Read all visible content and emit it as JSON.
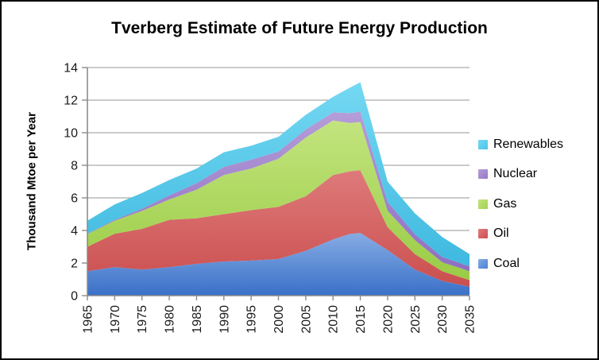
{
  "chart_data": {
    "type": "area",
    "stacked": true,
    "title": "Tverberg Estimate of Future Energy Production",
    "ylabel": "Thousand Mtoe per Year",
    "xlabel": "",
    "ylim": [
      0,
      14
    ],
    "y_ticks": [
      0,
      2,
      4,
      6,
      8,
      10,
      12,
      14
    ],
    "x_tick_labels": [
      "1965",
      "1970",
      "1975",
      "1980",
      "1985",
      "1990",
      "1995",
      "2000",
      "2005",
      "2010",
      "2015",
      "2020",
      "2025",
      "2030",
      "2035"
    ],
    "grid": true,
    "legend_position": "right",
    "legend_order": [
      "Renewables",
      "Nuclear",
      "Gas",
      "Oil",
      "Coal"
    ],
    "x": [
      1965,
      1970,
      1975,
      1980,
      1985,
      1990,
      1995,
      2000,
      2005,
      2010,
      2013,
      2015,
      2020,
      2025,
      2030,
      2035
    ],
    "series": [
      {
        "name": "Coal",
        "values": [
          1.5,
          1.75,
          1.6,
          1.75,
          1.95,
          2.1,
          2.15,
          2.25,
          2.75,
          3.45,
          3.78,
          3.85,
          2.8,
          1.6,
          0.9,
          0.55
        ],
        "color_top": "#86ACE4",
        "color_bottom": "#3A70C8",
        "legend_color": "#4A80D2"
      },
      {
        "name": "Oil",
        "values": [
          1.5,
          2.05,
          2.5,
          2.9,
          2.8,
          2.9,
          3.1,
          3.2,
          3.35,
          3.95,
          3.85,
          3.85,
          1.4,
          0.95,
          0.6,
          0.4
        ],
        "color_top": "#DE7A7A",
        "color_bottom": "#CB4F4F",
        "legend_color": "#CF5050"
      },
      {
        "name": "Gas",
        "values": [
          0.78,
          0.8,
          1.1,
          1.25,
          1.75,
          2.4,
          2.55,
          2.95,
          3.6,
          3.35,
          2.97,
          2.95,
          1.0,
          0.85,
          0.55,
          0.55
        ],
        "color_top": "#C3E47E",
        "color_bottom": "#99CC45",
        "legend_color": "#A2D14F"
      },
      {
        "name": "Nuclear",
        "values": [
          0.02,
          0.05,
          0.13,
          0.25,
          0.4,
          0.5,
          0.55,
          0.45,
          0.5,
          0.5,
          0.6,
          0.65,
          0.55,
          0.37,
          0.32,
          0.3
        ],
        "color_top": "#B49DD8",
        "color_bottom": "#8F6FC2",
        "legend_color": "#9678C6"
      },
      {
        "name": "Renewables",
        "values": [
          0.8,
          0.95,
          0.97,
          0.95,
          0.9,
          0.9,
          0.85,
          0.9,
          0.9,
          0.95,
          1.55,
          1.8,
          1.25,
          1.28,
          1.23,
          0.75
        ],
        "color_top": "#74D8F2",
        "color_bottom": "#3FB9E0",
        "legend_color": "#4FC4E8"
      }
    ],
    "colors": {
      "gridline": "#ABABAB",
      "axis": "#8C8C8C",
      "background": "#FFFFFF",
      "border": "#000000",
      "text": "#000000"
    }
  }
}
